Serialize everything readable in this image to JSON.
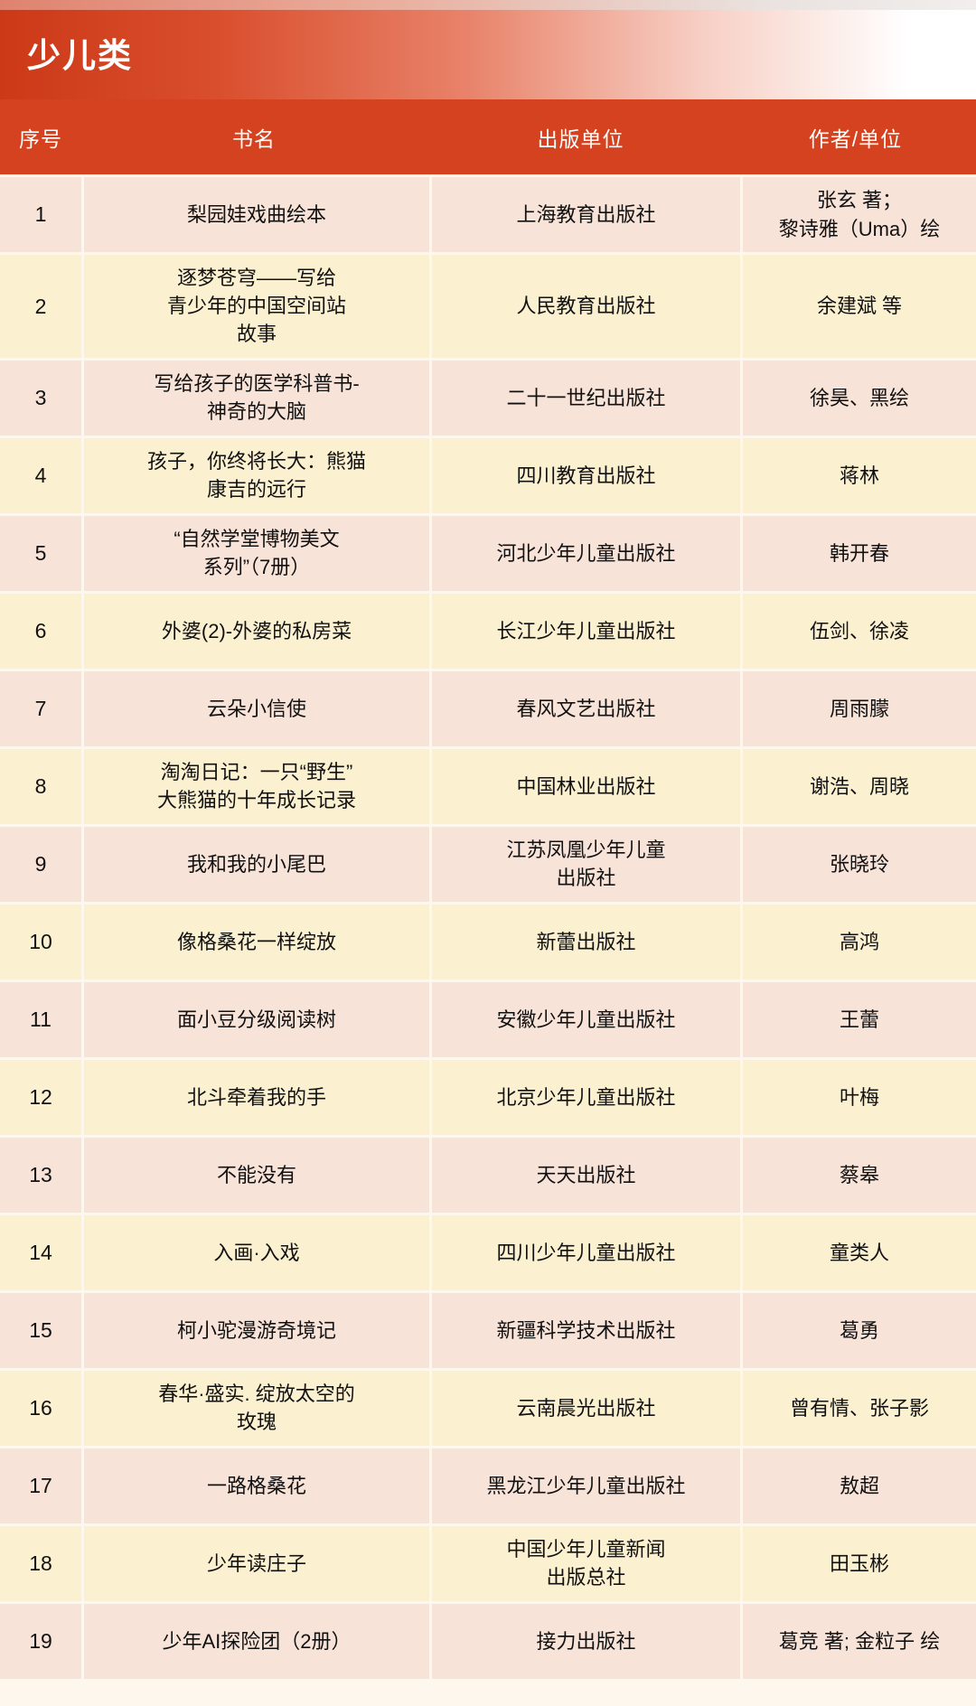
{
  "page": {
    "title": "少儿类"
  },
  "colors": {
    "header_red": "#d5421f",
    "banner_red": "#cc3917",
    "row_pink": "#f8e3d9",
    "row_cream": "#fbf0d0",
    "separator": "#fdf7ed"
  },
  "table": {
    "columns": [
      "序号",
      "书名",
      "出版单位",
      "作者/单位"
    ],
    "rows": [
      {
        "no": "1",
        "title": "梨园娃戏曲绘本",
        "publisher": "上海教育出版社",
        "author": "张玄 著；\n黎诗雅（Uma）绘"
      },
      {
        "no": "2",
        "title": "逐梦苍穹——写给\n青少年的中国空间站\n故事",
        "publisher": "人民教育出版社",
        "author": "余建斌 等"
      },
      {
        "no": "3",
        "title": "写给孩子的医学科普书-\n神奇的大脑",
        "publisher": "二十一世纪出版社",
        "author": "徐昊、黑绘"
      },
      {
        "no": "4",
        "title": "孩子，你终将长大：熊猫\n康吉的远行",
        "publisher": "四川教育出版社",
        "author": "蒋林"
      },
      {
        "no": "5",
        "title": "“自然学堂博物美文\n系列”（7册）",
        "publisher": "河北少年儿童出版社",
        "author": "韩开春"
      },
      {
        "no": "6",
        "title": "外婆(2)-外婆的私房菜",
        "publisher": "长江少年儿童出版社",
        "author": "伍剑、徐凌"
      },
      {
        "no": "7",
        "title": "云朵小信使",
        "publisher": "春风文艺出版社",
        "author": "周雨朦"
      },
      {
        "no": "8",
        "title": "淘淘日记：一只“野生”\n大熊猫的十年成长记录",
        "publisher": "中国林业出版社",
        "author": "谢浩、周晓"
      },
      {
        "no": "9",
        "title": "我和我的小尾巴",
        "publisher": "江苏凤凰少年儿童\n出版社",
        "author": "张晓玲"
      },
      {
        "no": "10",
        "title": "像格桑花一样绽放",
        "publisher": "新蕾出版社",
        "author": "高鸿"
      },
      {
        "no": "11",
        "title": "面小豆分级阅读树",
        "publisher": "安徽少年儿童出版社",
        "author": "王蕾"
      },
      {
        "no": "12",
        "title": "北斗牵着我的手",
        "publisher": "北京少年儿童出版社",
        "author": "叶梅"
      },
      {
        "no": "13",
        "title": "不能没有",
        "publisher": "天天出版社",
        "author": "蔡皋"
      },
      {
        "no": "14",
        "title": "入画·入戏",
        "publisher": "四川少年儿童出版社",
        "author": "童类人"
      },
      {
        "no": "15",
        "title": "柯小驼漫游奇境记",
        "publisher": "新疆科学技术出版社",
        "author": "葛勇"
      },
      {
        "no": "16",
        "title": "春华·盛实. 绽放太空的\n玫瑰",
        "publisher": "云南晨光出版社",
        "author": "曾有情、张子影"
      },
      {
        "no": "17",
        "title": "一路格桑花",
        "publisher": "黑龙江少年儿童出版社",
        "author": "敖超"
      },
      {
        "no": "18",
        "title": "少年读庄子",
        "publisher": "中国少年儿童新闻\n出版总社",
        "author": "田玉彬"
      },
      {
        "no": "19",
        "title": "少年AI探险团（2册）",
        "publisher": "接力出版社",
        "author": "葛竞 著; 金粒子 绘"
      }
    ]
  }
}
